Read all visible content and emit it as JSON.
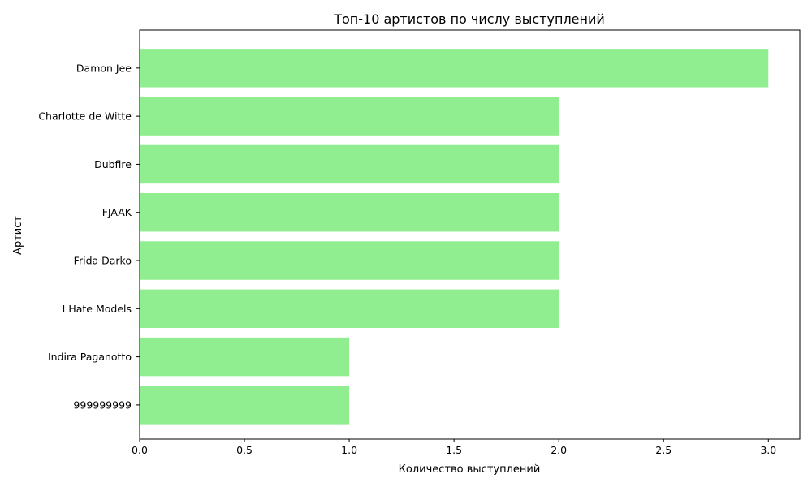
{
  "chart_data": {
    "type": "bar",
    "orientation": "horizontal",
    "title": "Топ-10 артистов по числу выступлений",
    "xlabel": "Количество выступлений",
    "ylabel": "Артист",
    "categories": [
      "Damon Jee",
      "Charlotte de Witte",
      "Dubfire ",
      "FJAAK",
      "Frida Darko",
      "I Hate Models",
      "Indira Paganotto",
      "999999999"
    ],
    "values": [
      3,
      2,
      2,
      2,
      2,
      2,
      1,
      1
    ],
    "xlim": [
      0,
      3.15
    ],
    "xticks": [
      0.0,
      0.5,
      1.0,
      1.5,
      2.0,
      2.5,
      3.0
    ],
    "xtick_labels": [
      "0.0",
      "0.5",
      "1.0",
      "1.5",
      "2.0",
      "2.5",
      "3.0"
    ],
    "bar_color": "#90ee90",
    "grid": false
  }
}
